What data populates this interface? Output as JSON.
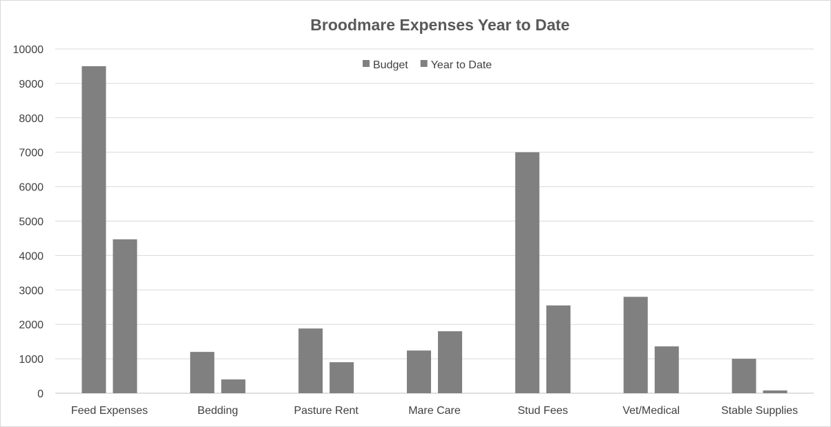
{
  "chart_data": {
    "type": "bar",
    "title": "Broodmare Expenses Year to Date",
    "categories": [
      "Feed Expenses",
      "Bedding",
      "Pasture Rent",
      "Mare Care",
      "Stud Fees",
      "Vet/Medical",
      "Stable Supplies"
    ],
    "series": [
      {
        "name": "Budget",
        "values": [
          9500,
          1200,
          1880,
          1240,
          7000,
          2800,
          1000
        ],
        "color": "#808080"
      },
      {
        "name": "Year to Date",
        "values": [
          4470,
          400,
          900,
          1800,
          2550,
          1360,
          80
        ],
        "color": "#808080"
      }
    ],
    "ylim": [
      0,
      10000
    ],
    "yticks": [
      0,
      1000,
      2000,
      3000,
      4000,
      5000,
      6000,
      7000,
      8000,
      9000,
      10000
    ],
    "grid": true,
    "legend_position": "top-center",
    "xlabel": "",
    "ylabel": ""
  }
}
